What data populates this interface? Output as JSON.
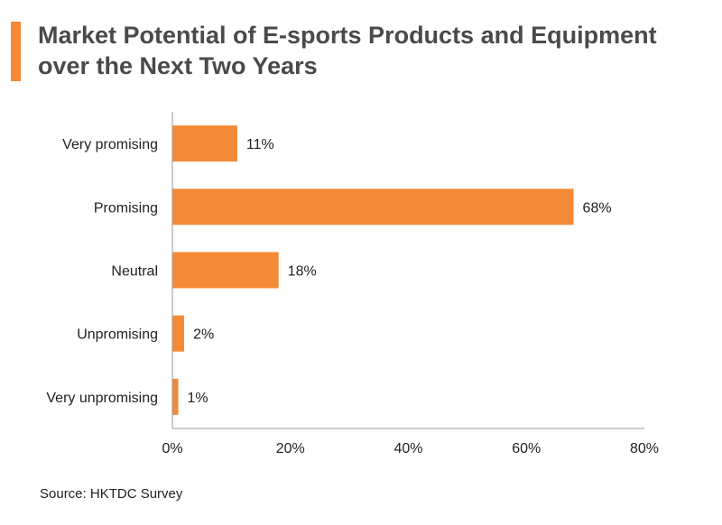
{
  "title_lines": [
    "Market Potential of E-sports Products and Equipment",
    "over the Next Two Years"
  ],
  "source": "Source: HKTDC Survey",
  "colors": {
    "accent": "#f48a35",
    "bar": "#f48a35",
    "axis": "#9a9a9a",
    "text": "#222222"
  },
  "chart_data": {
    "type": "bar",
    "orientation": "horizontal",
    "title": "Market Potential of E-sports Products and Equipment over the Next Two Years",
    "categories": [
      "Very promising",
      "Promising",
      "Neutral",
      "Unpromising",
      "Very unpromising"
    ],
    "values": [
      11,
      68,
      18,
      2,
      1
    ],
    "value_labels": [
      "11%",
      "68%",
      "18%",
      "2%",
      "1%"
    ],
    "xlim": [
      0,
      80
    ],
    "xticks": [
      0,
      20,
      40,
      60,
      80
    ],
    "xtick_labels": [
      "0%",
      "20%",
      "40%",
      "60%",
      "80%"
    ],
    "xlabel": "",
    "ylabel": "",
    "grid": false,
    "legend": "none"
  }
}
